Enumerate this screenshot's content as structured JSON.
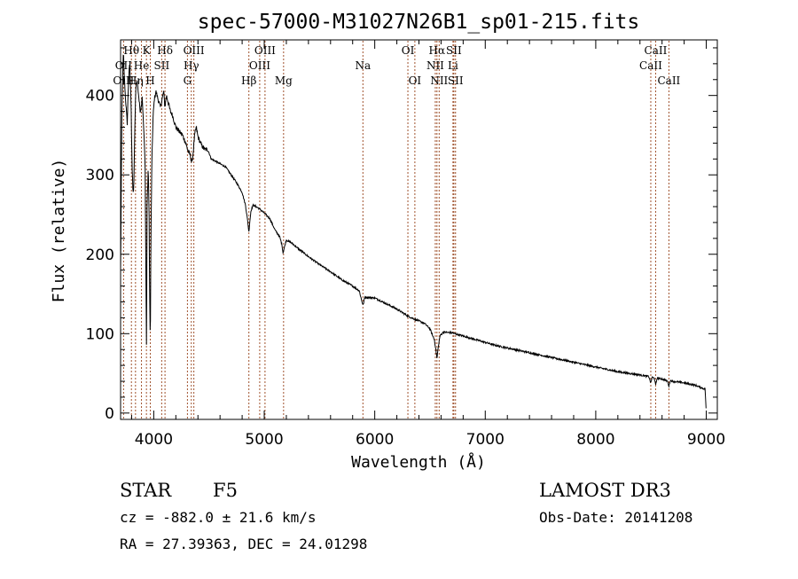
{
  "chart_data": {
    "type": "line",
    "title": "spec-57000-M31027N26B1_sp01-215.fits",
    "xlabel": "Wavelength (Å)",
    "ylabel": "Flux (relative)",
    "xlim": [
      3700,
      9100
    ],
    "ylim": [
      -8,
      470
    ],
    "xticks": [
      4000,
      5000,
      6000,
      7000,
      8000,
      9000
    ],
    "yticks": [
      0,
      100,
      200,
      300,
      400
    ],
    "spectrum_knots": [
      [
        3700,
        180
      ],
      [
        3712,
        380
      ],
      [
        3725,
        455
      ],
      [
        3735,
        420
      ],
      [
        3745,
        395
      ],
      [
        3760,
        365
      ],
      [
        3772,
        420
      ],
      [
        3783,
        440
      ],
      [
        3795,
        390
      ],
      [
        3800,
        345
      ],
      [
        3805,
        305
      ],
      [
        3810,
        285
      ],
      [
        3815,
        275
      ],
      [
        3822,
        300
      ],
      [
        3830,
        370
      ],
      [
        3840,
        415
      ],
      [
        3850,
        418
      ],
      [
        3860,
        405
      ],
      [
        3870,
        390
      ],
      [
        3878,
        380
      ],
      [
        3885,
        385
      ],
      [
        3890,
        390
      ],
      [
        3895,
        400
      ],
      [
        3905,
        370
      ],
      [
        3915,
        340
      ],
      [
        3922,
        310
      ],
      [
        3928,
        200
      ],
      [
        3932,
        120
      ],
      [
        3934,
        85
      ],
      [
        3936,
        120
      ],
      [
        3940,
        260
      ],
      [
        3950,
        310
      ],
      [
        3958,
        250
      ],
      [
        3962,
        170
      ],
      [
        3966,
        110
      ],
      [
        3968,
        100
      ],
      [
        3970,
        115
      ],
      [
        3975,
        230
      ],
      [
        3985,
        330
      ],
      [
        3995,
        375
      ],
      [
        4005,
        395
      ],
      [
        4020,
        405
      ],
      [
        4040,
        395
      ],
      [
        4060,
        385
      ],
      [
        4075,
        395
      ],
      [
        4090,
        405
      ],
      [
        4101,
        385
      ],
      [
        4115,
        400
      ],
      [
        4130,
        392
      ],
      [
        4150,
        380
      ],
      [
        4170,
        375
      ],
      [
        4200,
        360
      ],
      [
        4230,
        355
      ],
      [
        4260,
        350
      ],
      [
        4290,
        340
      ],
      [
        4310,
        330
      ],
      [
        4330,
        325
      ],
      [
        4345,
        315
      ],
      [
        4355,
        325
      ],
      [
        4370,
        350
      ],
      [
        4385,
        360
      ],
      [
        4400,
        348
      ],
      [
        4430,
        338
      ],
      [
        4460,
        332
      ],
      [
        4490,
        332
      ],
      [
        4520,
        320
      ],
      [
        4550,
        318
      ],
      [
        4600,
        314
      ],
      [
        4650,
        310
      ],
      [
        4700,
        300
      ],
      [
        4750,
        290
      ],
      [
        4800,
        278
      ],
      [
        4830,
        262
      ],
      [
        4850,
        242
      ],
      [
        4861,
        228
      ],
      [
        4870,
        242
      ],
      [
        4880,
        255
      ],
      [
        4900,
        262
      ],
      [
        4950,
        258
      ],
      [
        5000,
        252
      ],
      [
        5050,
        245
      ],
      [
        5100,
        230
      ],
      [
        5140,
        222
      ],
      [
        5160,
        212
      ],
      [
        5170,
        202
      ],
      [
        5185,
        210
      ],
      [
        5200,
        218
      ],
      [
        5250,
        214
      ],
      [
        5300,
        208
      ],
      [
        5400,
        197
      ],
      [
        5500,
        187
      ],
      [
        5600,
        178
      ],
      [
        5700,
        168
      ],
      [
        5800,
        160
      ],
      [
        5860,
        154
      ],
      [
        5885,
        140
      ],
      [
        5895,
        136
      ],
      [
        5910,
        146
      ],
      [
        6000,
        145
      ],
      [
        6100,
        138
      ],
      [
        6200,
        131
      ],
      [
        6280,
        124
      ],
      [
        6300,
        122
      ],
      [
        6400,
        116
      ],
      [
        6450,
        113
      ],
      [
        6500,
        106
      ],
      [
        6540,
        92
      ],
      [
        6555,
        78
      ],
      [
        6563,
        68
      ],
      [
        6572,
        80
      ],
      [
        6590,
        97
      ],
      [
        6620,
        102
      ],
      [
        6700,
        101
      ],
      [
        6800,
        97
      ],
      [
        6900,
        93
      ],
      [
        7000,
        89
      ],
      [
        7100,
        85
      ],
      [
        7200,
        82
      ],
      [
        7300,
        79
      ],
      [
        7400,
        76
      ],
      [
        7500,
        73
      ],
      [
        7600,
        70
      ],
      [
        7700,
        67
      ],
      [
        7800,
        64
      ],
      [
        7900,
        61
      ],
      [
        8000,
        58
      ],
      [
        8100,
        55
      ],
      [
        8200,
        52
      ],
      [
        8300,
        50
      ],
      [
        8400,
        48
      ],
      [
        8480,
        46
      ],
      [
        8498,
        38
      ],
      [
        8510,
        45
      ],
      [
        8530,
        44
      ],
      [
        8542,
        35
      ],
      [
        8555,
        44
      ],
      [
        8600,
        43
      ],
      [
        8650,
        40
      ],
      [
        8662,
        34
      ],
      [
        8675,
        41
      ],
      [
        8700,
        40
      ],
      [
        8800,
        38
      ],
      [
        8900,
        35
      ],
      [
        8990,
        30
      ],
      [
        9000,
        0
      ]
    ],
    "lines": [
      {
        "label": "Hθ",
        "wavelength": 3798,
        "row": 0
      },
      {
        "label": "K",
        "wavelength": 3934,
        "row": 0
      },
      {
        "label": "Hδ",
        "wavelength": 4102,
        "row": 0
      },
      {
        "label": "OIII",
        "wavelength": 4363,
        "row": 0
      },
      {
        "label": "OIII",
        "wavelength": 5007,
        "row": 0
      },
      {
        "label": "OI",
        "wavelength": 6300,
        "row": 0
      },
      {
        "label": "Hα",
        "wavelength": 6563,
        "row": 0
      },
      {
        "label": "SII",
        "wavelength": 6716,
        "row": 0
      },
      {
        "label": "CaII",
        "wavelength": 8542,
        "row": 0
      },
      {
        "label": "OII",
        "wavelength": 3727,
        "row": 1
      },
      {
        "label": "He",
        "wavelength": 3889,
        "row": 1
      },
      {
        "label": "SII",
        "wavelength": 4072,
        "row": 1
      },
      {
        "label": "Hγ",
        "wavelength": 4340,
        "row": 1
      },
      {
        "label": "OIII",
        "wavelength": 4959,
        "row": 1
      },
      {
        "label": "Na",
        "wavelength": 5893,
        "row": 1
      },
      {
        "label": "NII",
        "wavelength": 6548,
        "row": 1
      },
      {
        "label": "Li",
        "wavelength": 6708,
        "row": 1
      },
      {
        "label": "CaII",
        "wavelength": 8498,
        "row": 1
      },
      {
        "label": "OIII",
        "wavelength": 3727,
        "row": 2
      },
      {
        "label": "Hη",
        "wavelength": 3835,
        "row": 2
      },
      {
        "label": "H",
        "wavelength": 3969,
        "row": 2
      },
      {
        "label": "G",
        "wavelength": 4305,
        "row": 2
      },
      {
        "label": "Hβ",
        "wavelength": 4861,
        "row": 2
      },
      {
        "label": "Mg",
        "wavelength": 5175,
        "row": 2
      },
      {
        "label": "OI",
        "wavelength": 6363,
        "row": 2
      },
      {
        "label": "NII",
        "wavelength": 6583,
        "row": 2
      },
      {
        "label": "SII",
        "wavelength": 6731,
        "row": 2
      },
      {
        "label": "CaII",
        "wavelength": 8662,
        "row": 2
      }
    ]
  },
  "info": {
    "class_label": "STAR",
    "subclass": "F5",
    "survey": "LAMOST DR3",
    "cz_line": "cz = -882.0 ± 21.6 km/s",
    "obs_date": "Obs-Date: 20141208",
    "coords": "RA =  27.39363, DEC =  24.01298"
  },
  "colors": {
    "spectrum": "#000000",
    "line_marker": "#a0522d"
  }
}
